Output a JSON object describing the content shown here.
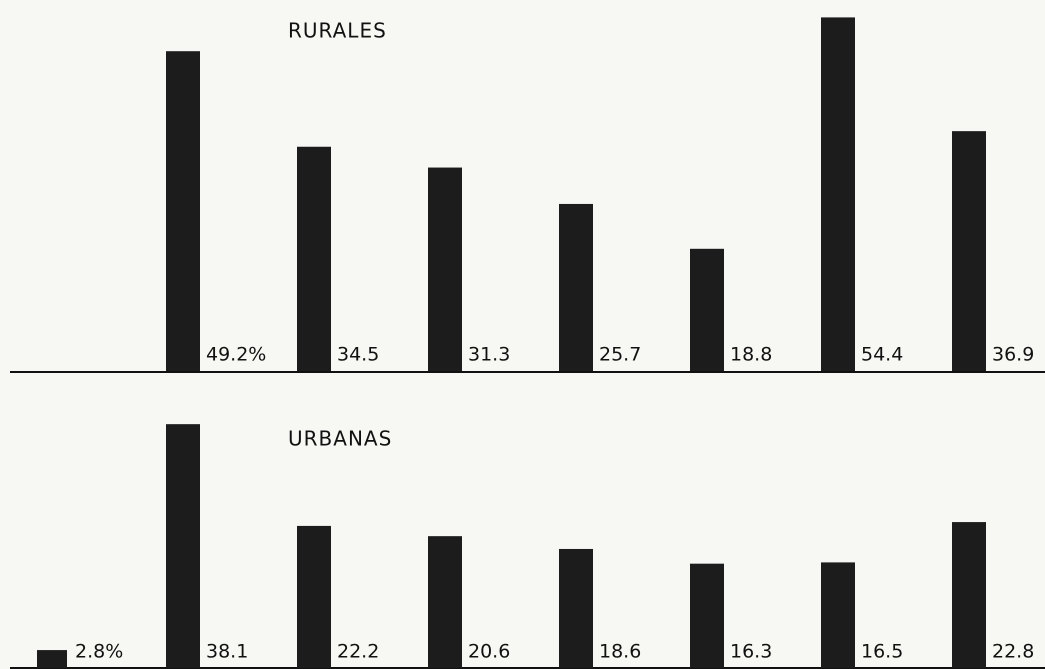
{
  "chart_data": [
    {
      "type": "bar",
      "title": "RURALES",
      "values": [
        null,
        49.2,
        34.5,
        31.3,
        25.7,
        18.8,
        54.4,
        36.9
      ],
      "value_labels": [
        null,
        "49.2%",
        "34.5",
        "31.3",
        "25.7",
        "18.8",
        "54.4",
        "36.9"
      ],
      "color": "#1c1c1c",
      "ylim": [
        0,
        55
      ]
    },
    {
      "type": "bar",
      "title": "URBANAS",
      "values": [
        2.8,
        38.1,
        22.2,
        20.6,
        18.6,
        16.3,
        16.5,
        22.8
      ],
      "value_labels": [
        "2.8%",
        "38.1",
        "22.2",
        "20.6",
        "18.6",
        "16.3",
        "16.5",
        "22.8"
      ],
      "color": "#1c1c1c",
      "ylim": [
        0,
        55
      ]
    }
  ]
}
